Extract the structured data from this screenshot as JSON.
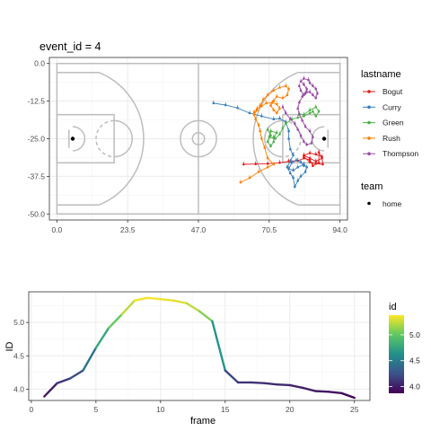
{
  "chart_data": [
    {
      "type": "scatter",
      "title": "event_id = 4",
      "xlabel": "",
      "ylabel": "",
      "xlim": [
        -2.5,
        96.5
      ],
      "ylim": [
        -52,
        2
      ],
      "x_ticks": [
        0,
        23.5,
        47,
        70.5,
        94
      ],
      "x_tick_labels": [
        "0.0",
        "23.5",
        "47.0",
        "70.5",
        "94.0"
      ],
      "y_ticks": [
        0,
        -12.5,
        -25,
        -37.5,
        -50
      ],
      "y_tick_labels": [
        "0.0",
        "-12.5",
        "-25.0",
        "-37.5",
        "-50.0"
      ],
      "grid": true,
      "background": "court",
      "legend": {
        "position": "right",
        "color_title": "lastname",
        "shape_title": "team",
        "shape_entries": [
          "home"
        ]
      },
      "series": [
        {
          "name": "Bogut",
          "color": "#E41A1C",
          "points": [
            [
              62,
              -33.5
            ],
            [
              66,
              -33.4
            ],
            [
              70,
              -33.3
            ],
            [
              74,
              -33.0
            ],
            [
              77,
              -32.5
            ],
            [
              80,
              -32.3
            ],
            [
              82,
              -31.5
            ],
            [
              84,
              -32.0
            ],
            [
              85,
              -34.0
            ],
            [
              87,
              -33.0
            ],
            [
              87,
              -29.5
            ],
            [
              88,
              -31.5
            ],
            [
              86,
              -32.5
            ],
            [
              84,
              -31.5
            ],
            [
              82,
              -30.5
            ],
            [
              84,
              -29.8
            ],
            [
              86,
              -30.2
            ],
            [
              88,
              -31.0
            ],
            [
              88.3,
              -33.5
            ],
            [
              86,
              -33.3
            ],
            [
              84,
              -32.8
            ],
            [
              82,
              -31.0
            ]
          ]
        },
        {
          "name": "Curry",
          "color": "#377EB8",
          "points": [
            [
              52,
              -13.2
            ],
            [
              56,
              -13.8
            ],
            [
              60,
              -14.8
            ],
            [
              64,
              -16.5
            ],
            [
              68,
              -17.5
            ],
            [
              72,
              -18.5
            ],
            [
              74,
              -18.3
            ],
            [
              76,
              -19.5
            ],
            [
              77,
              -22.5
            ],
            [
              77,
              -25.0
            ],
            [
              77.5,
              -28.5
            ],
            [
              78.5,
              -30.5
            ],
            [
              77.5,
              -32.5
            ],
            [
              76.5,
              -34.5
            ],
            [
              77.5,
              -36.5
            ],
            [
              78.5,
              -38.0
            ],
            [
              79,
              -41.0
            ],
            [
              80,
              -39.0
            ],
            [
              81,
              -37.5
            ],
            [
              82.5,
              -36.0
            ],
            [
              83,
              -34.5
            ],
            [
              82,
              -33.5
            ],
            [
              80,
              -34.5
            ],
            [
              78.5,
              -35.5
            ],
            [
              77,
              -35.0
            ],
            [
              78,
              -33.0
            ],
            [
              79.5,
              -32.2
            ],
            [
              81,
              -32.8
            ],
            [
              82,
              -34.0
            ]
          ]
        },
        {
          "name": "Green",
          "color": "#4DAF4A",
          "points": [
            [
              70,
              -22.0
            ],
            [
              71,
              -24.0
            ],
            [
              70,
              -26.0
            ],
            [
              71,
              -27.5
            ],
            [
              72,
              -26.0
            ],
            [
              72,
              -24.5
            ],
            [
              73,
              -23.0
            ],
            [
              71,
              -22.5
            ],
            [
              70.5,
              -24.5
            ],
            [
              72.5,
              -25.0
            ],
            [
              74,
              -23.5
            ],
            [
              75,
              -21.5
            ],
            [
              76,
              -20.0
            ],
            [
              78,
              -18.5
            ],
            [
              80,
              -18.0
            ],
            [
              82,
              -17.5
            ],
            [
              84,
              -16.5
            ],
            [
              85,
              -16.0
            ],
            [
              86,
              -17.5
            ],
            [
              87,
              -16.0
            ],
            [
              86,
              -14.5
            ],
            [
              84,
              -15.5
            ],
            [
              82,
              -17.0
            ],
            [
              80.5,
              -16.8
            ]
          ]
        },
        {
          "name": "Rush",
          "color": "#FF7F00",
          "points": [
            [
              61,
              -39.5
            ],
            [
              64,
              -38.0
            ],
            [
              67,
              -36.0
            ],
            [
              70,
              -34.5
            ],
            [
              72,
              -33.5
            ],
            [
              70,
              -31.5
            ],
            [
              69,
              -28.0
            ],
            [
              68,
              -25.0
            ],
            [
              67.5,
              -22.5
            ],
            [
              67,
              -20.5
            ],
            [
              66,
              -18.5
            ],
            [
              65.5,
              -17.0
            ],
            [
              66.5,
              -15.5
            ],
            [
              67.5,
              -14.0
            ],
            [
              68.5,
              -12.0
            ],
            [
              70,
              -10.5
            ],
            [
              72,
              -9.0
            ],
            [
              74,
              -8.0
            ],
            [
              76,
              -7.5
            ],
            [
              77,
              -8.5
            ],
            [
              76.5,
              -10.5
            ],
            [
              75,
              -11.5
            ],
            [
              73,
              -11.0
            ],
            [
              72,
              -12.5
            ],
            [
              71,
              -14.0
            ],
            [
              72,
              -15.5
            ],
            [
              73,
              -16.5
            ],
            [
              74,
              -15.0
            ],
            [
              73,
              -13.5
            ],
            [
              71.5,
              -13.0
            ],
            [
              69.5,
              -13.2
            ],
            [
              68,
              -14.2
            ],
            [
              66.5,
              -15.0
            ],
            [
              65.5,
              -16.2
            ]
          ]
        },
        {
          "name": "Thompson",
          "color": "#984EA3",
          "points": [
            [
              75,
              -14.5
            ],
            [
              76,
              -16.5
            ],
            [
              77.5,
              -18.5
            ],
            [
              79,
              -20.0
            ],
            [
              80,
              -22.0
            ],
            [
              81,
              -24.0
            ],
            [
              82,
              -26.0
            ],
            [
              83,
              -27.0
            ],
            [
              84.5,
              -26.5
            ],
            [
              85,
              -24.5
            ],
            [
              84,
              -22.5
            ],
            [
              82.5,
              -21.0
            ],
            [
              81.5,
              -19.0
            ],
            [
              80.5,
              -17.0
            ],
            [
              80,
              -15.0
            ],
            [
              80.5,
              -13.0
            ],
            [
              81.5,
              -11.0
            ],
            [
              82.5,
              -10.0
            ],
            [
              83,
              -8.5
            ],
            [
              82,
              -7.0
            ],
            [
              81,
              -6.0
            ],
            [
              82,
              -5.0
            ],
            [
              83.5,
              -5.5
            ],
            [
              84,
              -6.5
            ],
            [
              85,
              -7.5
            ],
            [
              86,
              -8.5
            ],
            [
              86.5,
              -10.0
            ],
            [
              86,
              -11.5
            ],
            [
              85,
              -10.5
            ],
            [
              84,
              -9.5
            ],
            [
              83,
              -9.5
            ],
            [
              82,
              -10.5
            ],
            [
              81,
              -9.0
            ],
            [
              80.5,
              -7.5
            ]
          ]
        }
      ]
    },
    {
      "type": "line",
      "title": "",
      "xlabel": "frame",
      "ylabel": "ID",
      "xlim": [
        -0.2,
        26.2
      ],
      "ylim": [
        3.83,
        5.46
      ],
      "x_ticks": [
        0,
        5,
        10,
        15,
        20,
        25
      ],
      "y_ticks": [
        4.0,
        4.5,
        5.0
      ],
      "y_tick_labels": [
        "4.0",
        "4.5",
        "5.0"
      ],
      "grid": true,
      "legend": {
        "position": "right",
        "title": "id",
        "type": "colorbar",
        "ticks": [
          4.0,
          4.5,
          5.0
        ],
        "tick_labels": [
          "4.0",
          "4.5",
          "5.0"
        ],
        "range": [
          3.87,
          5.38
        ],
        "palette": "viridis"
      },
      "x": [
        1,
        2,
        3,
        4,
        5,
        6,
        7,
        8,
        9,
        10,
        11,
        12,
        13,
        14,
        15,
        16,
        17,
        18,
        19,
        20,
        21,
        22,
        23,
        24,
        25
      ],
      "values": [
        3.89,
        4.09,
        4.16,
        4.28,
        4.62,
        4.92,
        5.12,
        5.33,
        5.37,
        5.35,
        5.33,
        5.29,
        5.17,
        5.02,
        4.28,
        4.1,
        4.1,
        4.09,
        4.07,
        4.06,
        4.02,
        3.97,
        3.96,
        3.94,
        3.87
      ]
    }
  ]
}
